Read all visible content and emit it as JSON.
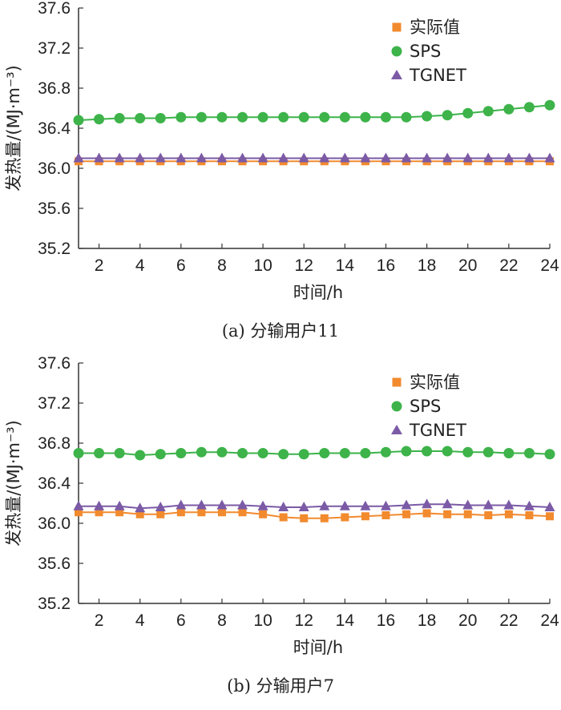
{
  "chart_data": [
    {
      "type": "line",
      "caption": "(a) 分输用户11",
      "xlabel": "时间/h",
      "ylabel": "发热量/(MJ·m⁻³)",
      "ylim": [
        35.2,
        37.6
      ],
      "yticks": [
        "35.2",
        "35.6",
        "36.0",
        "36.4",
        "36.8",
        "37.2",
        "37.6"
      ],
      "xlim": [
        1,
        24
      ],
      "xticks": [
        "2",
        "4",
        "6",
        "8",
        "10",
        "12",
        "14",
        "16",
        "18",
        "20",
        "22",
        "24"
      ],
      "x": [
        1,
        2,
        3,
        4,
        5,
        6,
        7,
        8,
        9,
        10,
        11,
        12,
        13,
        14,
        15,
        16,
        17,
        18,
        19,
        20,
        21,
        22,
        23,
        24
      ],
      "legend_position": "top-right",
      "series": [
        {
          "name": "实际值",
          "color": "#f28a2e",
          "marker": "square",
          "values": [
            36.07,
            36.07,
            36.07,
            36.07,
            36.07,
            36.07,
            36.07,
            36.07,
            36.07,
            36.07,
            36.07,
            36.07,
            36.07,
            36.07,
            36.07,
            36.07,
            36.07,
            36.07,
            36.07,
            36.07,
            36.07,
            36.07,
            36.07,
            36.07
          ]
        },
        {
          "name": "SPS",
          "color": "#3db34a",
          "marker": "circle",
          "values": [
            36.48,
            36.49,
            36.5,
            36.5,
            36.5,
            36.51,
            36.51,
            36.51,
            36.51,
            36.51,
            36.51,
            36.51,
            36.51,
            36.51,
            36.51,
            36.51,
            36.51,
            36.52,
            36.53,
            36.55,
            36.57,
            36.59,
            36.61,
            36.63
          ]
        },
        {
          "name": "TGNET",
          "color": "#7b5aa6",
          "marker": "triangle",
          "values": [
            36.1,
            36.1,
            36.1,
            36.1,
            36.1,
            36.1,
            36.1,
            36.1,
            36.1,
            36.1,
            36.1,
            36.1,
            36.1,
            36.1,
            36.1,
            36.1,
            36.1,
            36.1,
            36.1,
            36.1,
            36.1,
            36.1,
            36.1,
            36.1
          ]
        }
      ]
    },
    {
      "type": "line",
      "caption": "(b) 分输用户7",
      "xlabel": "时间/h",
      "ylabel": "发热量/(MJ·m⁻³)",
      "ylim": [
        35.2,
        37.6
      ],
      "yticks": [
        "35.2",
        "35.6",
        "36.0",
        "36.4",
        "36.8",
        "37.2",
        "37.6"
      ],
      "xlim": [
        1,
        24
      ],
      "xticks": [
        "2",
        "4",
        "6",
        "8",
        "10",
        "12",
        "14",
        "16",
        "18",
        "20",
        "22",
        "24"
      ],
      "x": [
        1,
        2,
        3,
        4,
        5,
        6,
        7,
        8,
        9,
        10,
        11,
        12,
        13,
        14,
        15,
        16,
        17,
        18,
        19,
        20,
        21,
        22,
        23,
        24
      ],
      "legend_position": "top-right",
      "series": [
        {
          "name": "实际值",
          "color": "#f28a2e",
          "marker": "square",
          "values": [
            36.11,
            36.11,
            36.11,
            36.09,
            36.09,
            36.11,
            36.11,
            36.11,
            36.11,
            36.09,
            36.06,
            36.05,
            36.05,
            36.06,
            36.07,
            36.08,
            36.09,
            36.1,
            36.09,
            36.09,
            36.08,
            36.09,
            36.08,
            36.07
          ]
        },
        {
          "name": "SPS",
          "color": "#3db34a",
          "marker": "circle",
          "values": [
            36.7,
            36.7,
            36.7,
            36.68,
            36.69,
            36.7,
            36.71,
            36.71,
            36.7,
            36.7,
            36.69,
            36.69,
            36.7,
            36.7,
            36.7,
            36.71,
            36.72,
            36.72,
            36.72,
            36.71,
            36.71,
            36.7,
            36.7,
            36.69
          ]
        },
        {
          "name": "TGNET",
          "color": "#7b5aa6",
          "marker": "triangle",
          "values": [
            36.17,
            36.17,
            36.17,
            36.15,
            36.16,
            36.18,
            36.18,
            36.18,
            36.18,
            36.17,
            36.16,
            36.16,
            36.17,
            36.17,
            36.17,
            36.17,
            36.18,
            36.19,
            36.19,
            36.18,
            36.18,
            36.18,
            36.17,
            36.16
          ]
        }
      ]
    }
  ]
}
